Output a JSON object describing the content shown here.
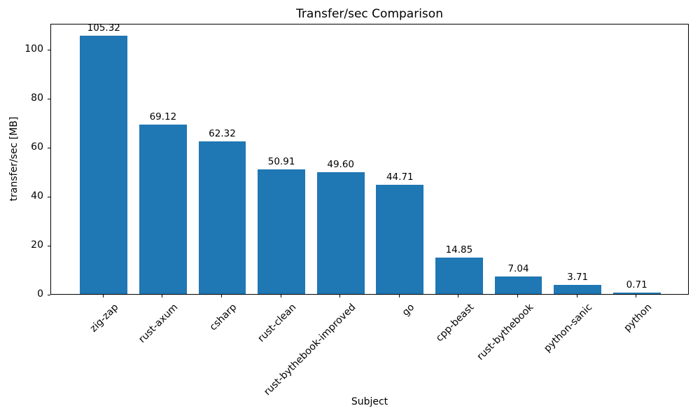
{
  "chart_data": {
    "type": "bar",
    "title": "Transfer/sec Comparison",
    "xlabel": "Subject",
    "ylabel": "transfer/sec [MB]",
    "categories": [
      "zig-zap",
      "rust-axum",
      "csharp",
      "rust-clean",
      "rust-bythebook-improved",
      "go",
      "cpp-beast",
      "rust-bythebook",
      "python-sanic",
      "python"
    ],
    "values": [
      105.32,
      69.12,
      62.32,
      50.91,
      49.6,
      44.71,
      14.85,
      7.04,
      3.71,
      0.71
    ],
    "value_label_decimals": 2,
    "yticks": [
      0,
      20,
      40,
      60,
      80,
      100
    ],
    "ylim": [
      0,
      110.59
    ],
    "bar_color": "#1f77b4",
    "bar_width_fraction": 0.8,
    "grid": false,
    "legend": false,
    "x_tick_rotation_deg": 45
  }
}
